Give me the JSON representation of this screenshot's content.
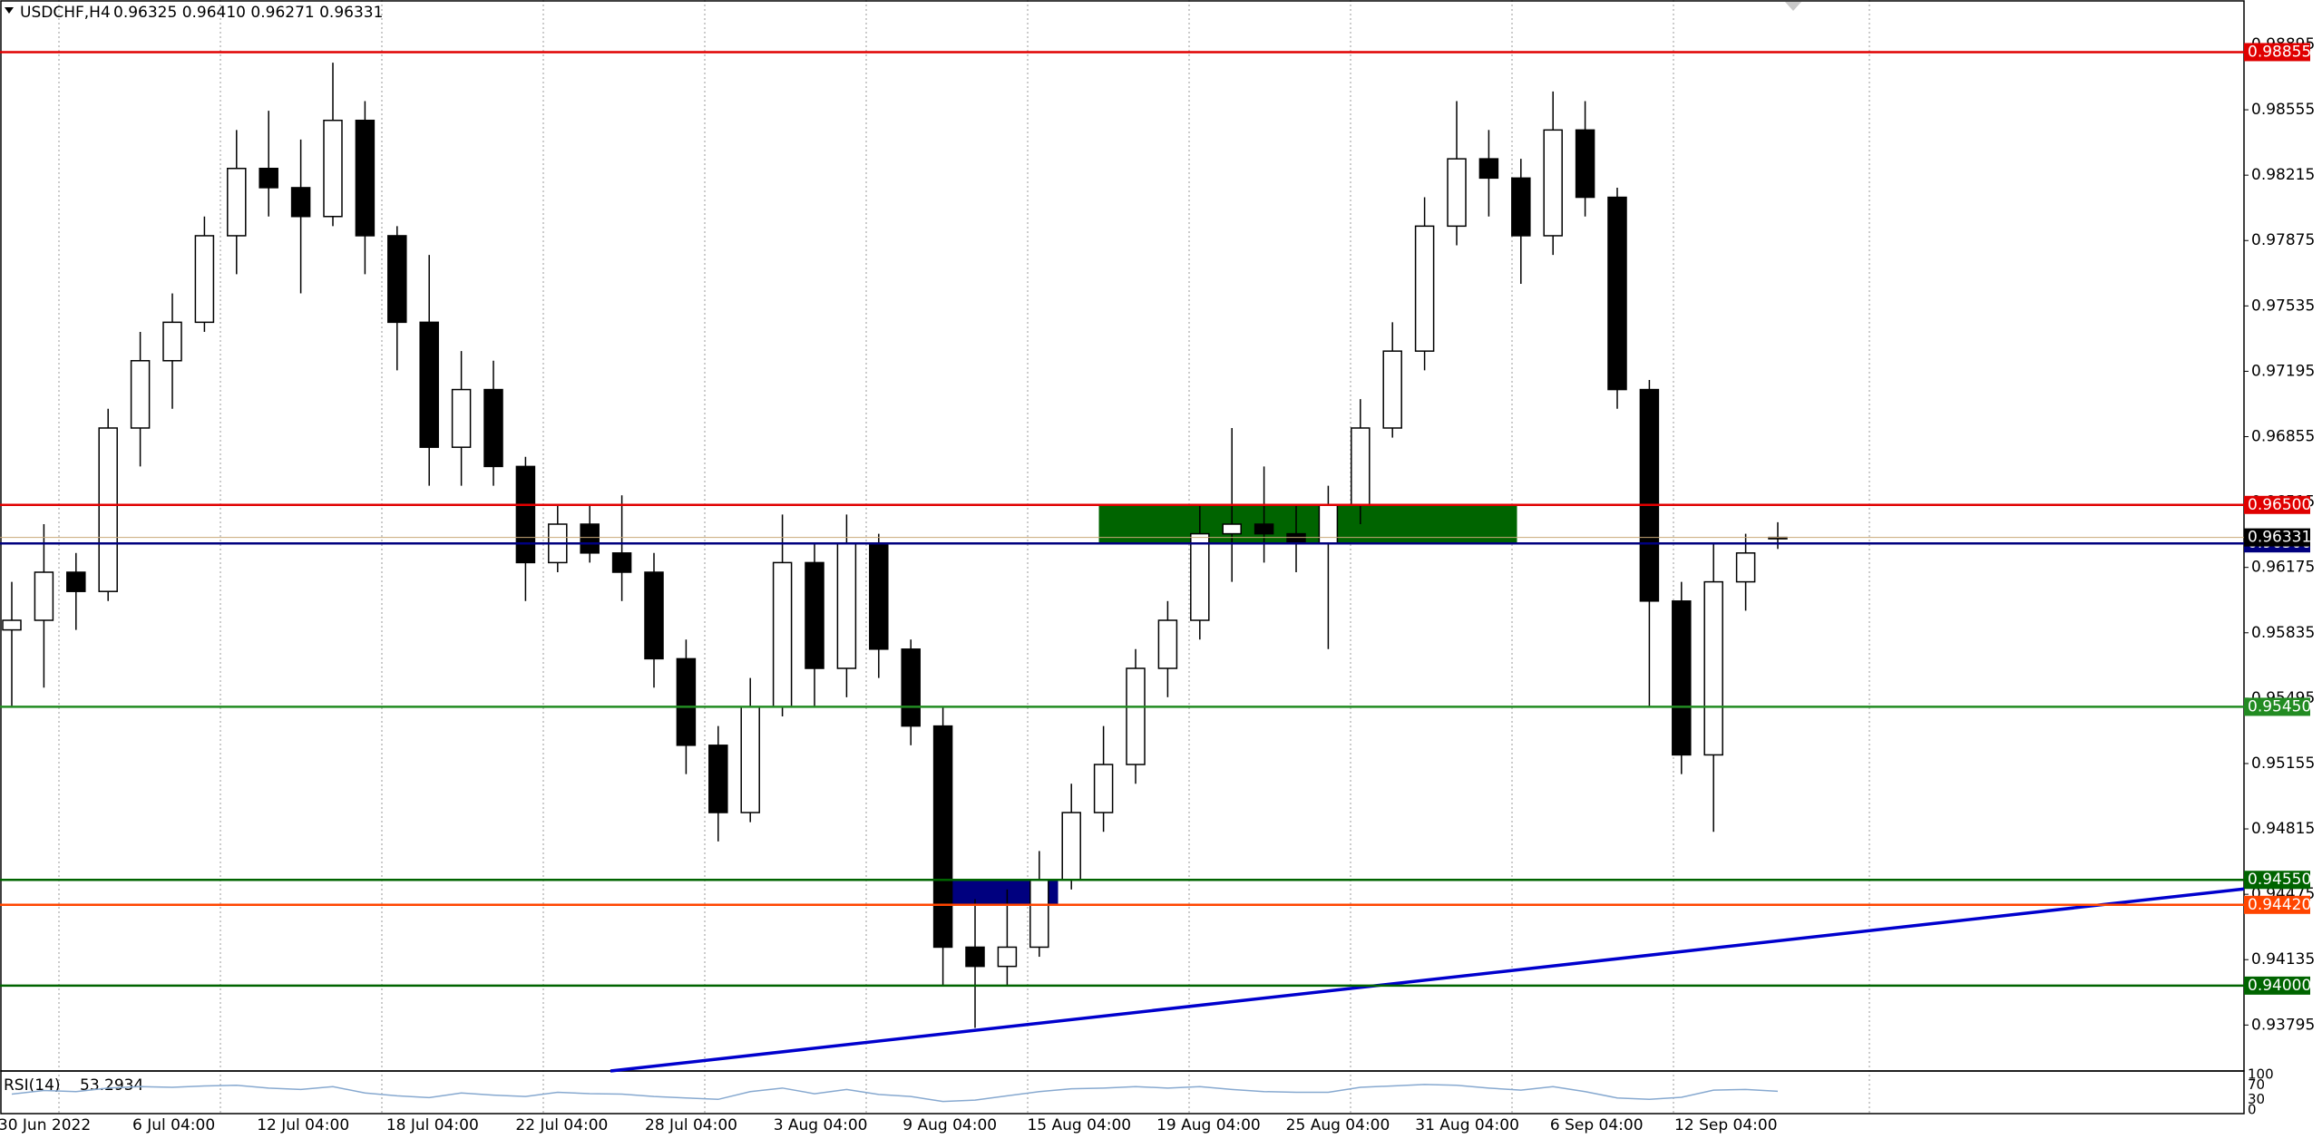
{
  "chart_data": {
    "type": "candlestick",
    "title": "USDCHF,H4",
    "quote": "0.96325 0.96410 0.96271 0.96331",
    "open": [
      0.9585,
      0.959,
      0.9615,
      0.9605,
      0.969,
      0.9725,
      0.9745,
      0.979,
      0.9825,
      0.9815,
      0.98,
      0.985,
      0.979,
      0.9745,
      0.968,
      0.971,
      0.967,
      0.962,
      0.964,
      0.9625,
      0.9615,
      0.957,
      0.9525,
      0.949,
      0.9545,
      0.962,
      0.9565,
      0.963,
      0.9575,
      0.9535,
      0.942,
      0.941,
      0.942,
      0.9455,
      0.949,
      0.9515,
      0.9565,
      0.959,
      0.9635,
      0.964,
      0.9635,
      0.963,
      0.965,
      0.969,
      0.973,
      0.9795,
      0.983,
      0.982,
      0.979,
      0.9845,
      0.981,
      0.971,
      0.96,
      0.952,
      0.961,
      0.96325
    ],
    "high": [
      0.961,
      0.964,
      0.9625,
      0.97,
      0.974,
      0.976,
      0.98,
      0.9845,
      0.9855,
      0.984,
      0.988,
      0.986,
      0.9795,
      0.978,
      0.973,
      0.9725,
      0.9675,
      0.965,
      0.965,
      0.9655,
      0.9625,
      0.958,
      0.9535,
      0.956,
      0.9645,
      0.963,
      0.9645,
      0.9635,
      0.958,
      0.9545,
      0.9445,
      0.945,
      0.947,
      0.9505,
      0.9535,
      0.9575,
      0.96,
      0.965,
      0.969,
      0.967,
      0.965,
      0.966,
      0.9705,
      0.9745,
      0.981,
      0.986,
      0.9845,
      0.983,
      0.9865,
      0.986,
      0.9815,
      0.9715,
      0.961,
      0.963,
      0.9635,
      0.9641
    ],
    "low": [
      0.9545,
      0.9555,
      0.9585,
      0.96,
      0.967,
      0.97,
      0.974,
      0.977,
      0.98,
      0.976,
      0.9795,
      0.977,
      0.972,
      0.966,
      0.966,
      0.966,
      0.96,
      0.9615,
      0.962,
      0.96,
      0.9555,
      0.951,
      0.9475,
      0.9485,
      0.954,
      0.9545,
      0.955,
      0.956,
      0.9525,
      0.94,
      0.9378,
      0.94,
      0.9415,
      0.945,
      0.948,
      0.9505,
      0.955,
      0.958,
      0.961,
      0.962,
      0.9615,
      0.9575,
      0.964,
      0.9685,
      0.972,
      0.9785,
      0.98,
      0.9765,
      0.978,
      0.98,
      0.97,
      0.9545,
      0.951,
      0.948,
      0.9595,
      0.96271
    ],
    "close": [
      0.959,
      0.9615,
      0.9605,
      0.969,
      0.9725,
      0.9745,
      0.979,
      0.9825,
      0.9815,
      0.98,
      0.985,
      0.979,
      0.9745,
      0.968,
      0.971,
      0.967,
      0.962,
      0.964,
      0.9625,
      0.9615,
      0.957,
      0.9525,
      0.949,
      0.9545,
      0.962,
      0.9565,
      0.963,
      0.9575,
      0.9535,
      0.942,
      0.941,
      0.942,
      0.9455,
      0.949,
      0.9515,
      0.9565,
      0.959,
      0.9635,
      0.964,
      0.9635,
      0.963,
      0.965,
      0.969,
      0.973,
      0.9795,
      0.983,
      0.982,
      0.979,
      0.9845,
      0.981,
      0.971,
      0.96,
      0.952,
      0.961,
      0.9625,
      0.96331
    ],
    "current_price": 0.96331,
    "ylim": [
      0.93556,
      0.99126
    ],
    "yticks": [
      0.98895,
      0.98555,
      0.98215,
      0.97875,
      0.97535,
      0.97195,
      0.96855,
      0.96515,
      0.96175,
      0.95835,
      0.95495,
      0.95155,
      0.94815,
      0.94475,
      0.94135,
      0.93795
    ],
    "time_labels": [
      "30 Jun 2022",
      "6 Jul 04:00",
      "12 Jul 04:00",
      "18 Jul 04:00",
      "22 Jul 04:00",
      "28 Jul 04:00",
      "3 Aug 04:00",
      "9 Aug 04:00",
      "15 Aug 04:00",
      "19 Aug 04:00",
      "25 Aug 04:00",
      "31 Aug 04:00",
      "6 Sep 04:00",
      "12 Sep 04:00"
    ],
    "levels": [
      {
        "value": 0.98855,
        "label": "0.98855",
        "color": "#e00000"
      },
      {
        "value": 0.965,
        "label": "0.96500",
        "color": "#e00000"
      },
      {
        "value": 0.963,
        "label": "0.96300",
        "color": "#00007f"
      },
      {
        "value": 0.9545,
        "label": "0.95450",
        "color": "#228b22"
      },
      {
        "value": 0.9455,
        "label": "0.94550",
        "color": "#006400"
      },
      {
        "value": 0.9442,
        "label": "0.94420",
        "color": "#ff4500"
      },
      {
        "value": 0.94,
        "label": "0.94000",
        "color": "#006400"
      }
    ],
    "zones": [
      {
        "top": 0.965,
        "bottom": 0.963,
        "color": "#006400"
      },
      {
        "top": 0.9455,
        "bottom": 0.9442,
        "color": "#00007f"
      }
    ],
    "trendline": {
      "start": 0.93556,
      "end": 0.94503,
      "color": "#0000cd"
    },
    "rsi": {
      "title": "RSI(14)",
      "current": 53.2934,
      "color": "#87a9d0",
      "ylim": [
        0,
        100
      ],
      "yticks": [
        100,
        70,
        30,
        0
      ],
      "values": [
        45,
        55,
        52,
        62,
        66,
        64,
        68,
        70,
        62,
        58,
        66,
        48,
        40,
        35,
        48,
        42,
        38,
        50,
        46,
        45,
        38,
        34,
        30,
        52,
        62,
        46,
        58,
        44,
        38,
        24,
        28,
        40,
        52,
        60,
        62,
        66,
        62,
        66,
        58,
        52,
        50,
        50,
        64,
        68,
        72,
        70,
        62,
        56,
        66,
        52,
        34,
        30,
        36,
        56,
        58,
        53
      ]
    }
  }
}
